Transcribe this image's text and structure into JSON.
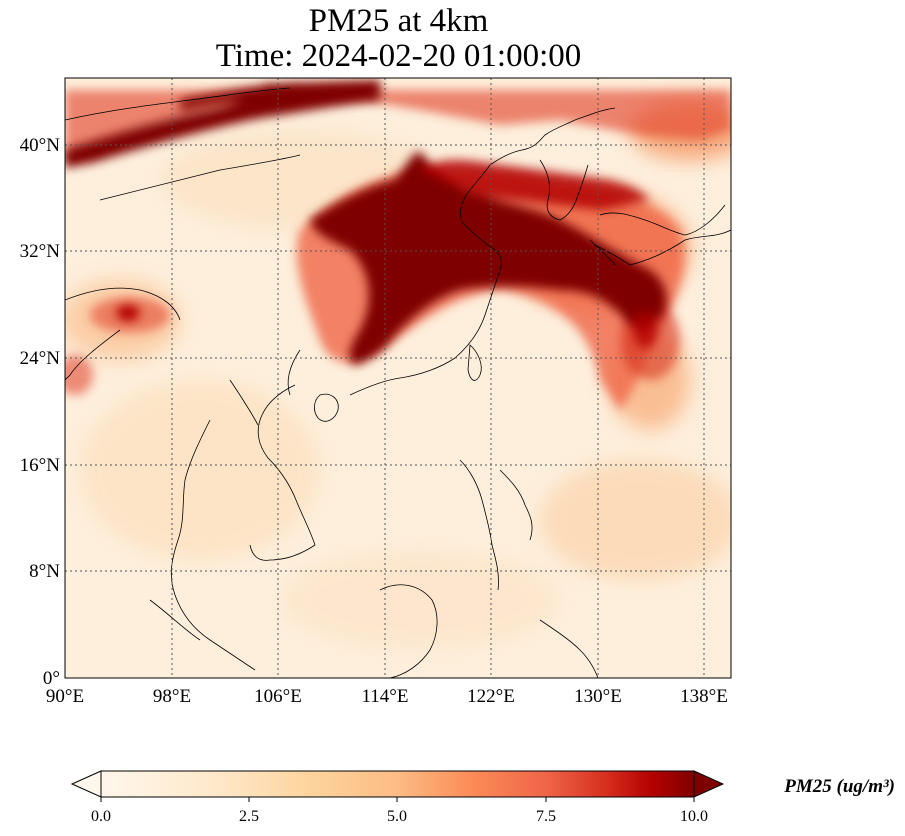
{
  "title": {
    "line1": "PM25 at 4km",
    "line2": "Time: 2024-02-20 01:00:00"
  },
  "map": {
    "lon_range": [
      90,
      140
    ],
    "lat_range": [
      0,
      45
    ],
    "lon_ticks": [
      "90°E",
      "98°E",
      "106°E",
      "114°E",
      "122°E",
      "130°E",
      "138°E"
    ],
    "lat_ticks": [
      "0°",
      "8°N",
      "16°N",
      "24°N",
      "32°N",
      "40°N"
    ],
    "gridlines": "dotted",
    "colormap": "OrRd",
    "colors": {
      "low": "#fff7ec",
      "mid": "#fc8d59",
      "high": "#7f0000"
    }
  },
  "colorbar": {
    "label": "PM25 (ug/m³)",
    "ticks": [
      "0.0",
      "2.5",
      "5.0",
      "7.5",
      "10.0"
    ],
    "range": [
      0,
      10
    ],
    "extend": "both"
  }
}
